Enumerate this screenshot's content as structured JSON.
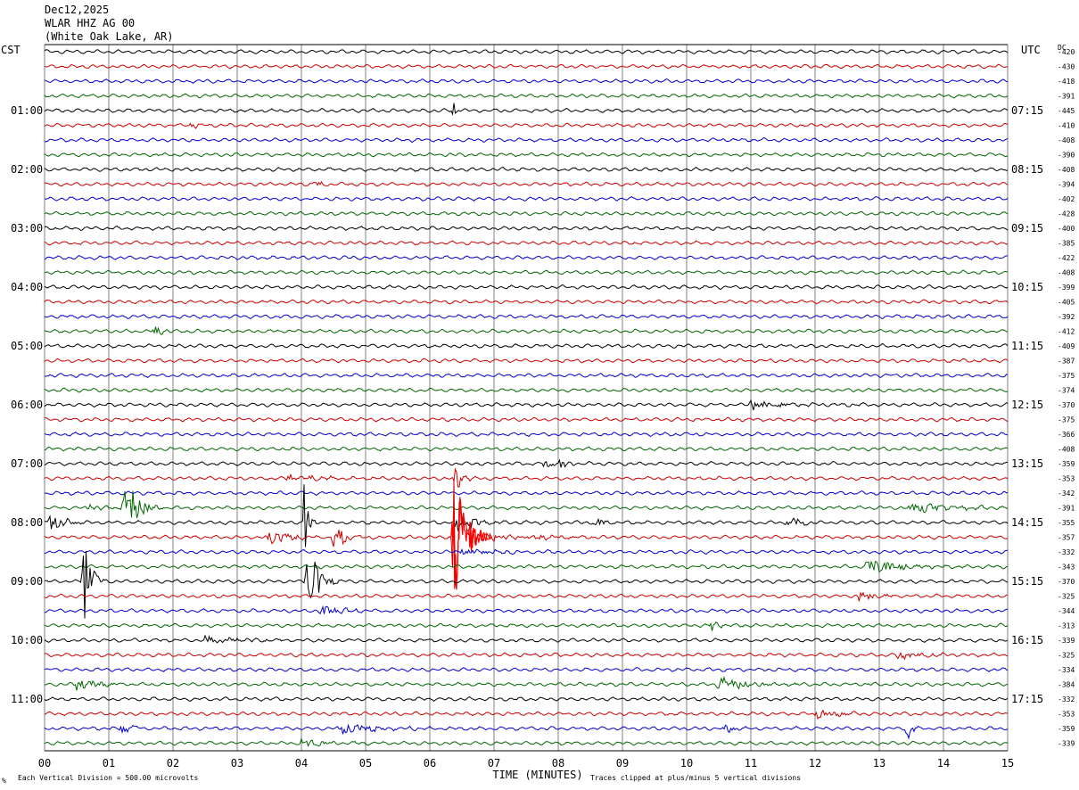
{
  "header": {
    "date": "Dec12,2025",
    "station": "WLAR HHZ AG 00",
    "location": "(White Oak Lake, AR)"
  },
  "labels": {
    "left_tz": "CST",
    "right_tz": "UTC",
    "dc": "DC",
    "xlabel": "TIME (MINUTES)",
    "scale_note": "Each Vertical Division =  500.00 microvolts",
    "clip_note": "Traces clipped at plus/minus 5 vertical divisions",
    "corner_mark": "%"
  },
  "colors": {
    "cycle": [
      "#000000",
      "#cc0000",
      "#0000cc",
      "#006600"
    ],
    "bright_red": "#ff0000",
    "grid": "#808080"
  },
  "chart_data": {
    "type": "line",
    "title": "",
    "x": {
      "label": "TIME (MINUTES)",
      "range": [
        0,
        15
      ],
      "ticks": [
        "00",
        "01",
        "02",
        "03",
        "04",
        "05",
        "06",
        "07",
        "08",
        "09",
        "10",
        "11",
        "12",
        "13",
        "14",
        "15"
      ]
    },
    "rows_per_hour": 4,
    "left_hour_labels": [
      "01:00",
      "02:00",
      "03:00",
      "04:00",
      "05:00",
      "06:00",
      "07:00",
      "08:00",
      "09:00",
      "10:00",
      "11:00"
    ],
    "right_hour_labels": [
      "07:15",
      "08:15",
      "09:15",
      "10:15",
      "11:15",
      "12:15",
      "13:15",
      "14:15",
      "15:15",
      "16:15",
      "17:15"
    ],
    "dc_offsets": [
      "-420",
      "-430",
      "-418",
      "-391",
      "-445",
      "-410",
      "-408",
      "-390",
      "-408",
      "-394",
      "-402",
      "-428",
      "-400",
      "-385",
      "-422",
      "-408",
      "-399",
      "-405",
      "-392",
      "-412",
      "-409",
      "-387",
      "-375",
      "-374",
      "-370",
      "-375",
      "-366",
      "-408",
      "-359",
      "-353",
      "-342",
      "-391",
      "-355",
      "-357",
      "-332",
      "-343",
      "-370",
      "-325",
      "-344",
      "-313",
      "-339",
      "-325",
      "-334",
      "-384",
      "-332",
      "-353",
      "-359",
      "-339"
    ],
    "noise_amplitude_divisions": 0.12,
    "events": [
      {
        "row": 4,
        "minute": 6.38,
        "duration": 0.12,
        "amplitude": 0.55
      },
      {
        "row": 5,
        "minute": 2.3,
        "duration": 0.15,
        "amplitude": 0.3
      },
      {
        "row": 9,
        "minute": 4.2,
        "duration": 0.2,
        "amplitude": 0.3
      },
      {
        "row": 19,
        "minute": 1.7,
        "duration": 0.3,
        "amplitude": 0.35
      },
      {
        "row": 24,
        "minute": 11.0,
        "duration": 1.2,
        "amplitude": 0.35
      },
      {
        "row": 28,
        "minute": 7.8,
        "duration": 0.15,
        "amplitude": 0.6
      },
      {
        "row": 28,
        "minute": 8.05,
        "duration": 0.15,
        "amplitude": 0.5
      },
      {
        "row": 29,
        "minute": 3.8,
        "duration": 1.0,
        "amplitude": 0.25
      },
      {
        "row": 29,
        "minute": 6.4,
        "duration": 0.2,
        "amplitude": 1.2
      },
      {
        "row": 31,
        "minute": 0.7,
        "duration": 0.3,
        "amplitude": 0.35
      },
      {
        "row": 31,
        "minute": 1.25,
        "duration": 0.4,
        "amplitude": 2.4,
        "clipped": true
      },
      {
        "row": 31,
        "minute": 13.5,
        "duration": 1.5,
        "amplitude": 0.3
      },
      {
        "row": 32,
        "minute": 0.1,
        "duration": 0.4,
        "amplitude": 0.7
      },
      {
        "row": 32,
        "minute": 4.05,
        "duration": 0.12,
        "amplitude": 3.2,
        "clipped": true
      },
      {
        "row": 32,
        "minute": 6.4,
        "duration": 0.6,
        "amplitude": 0.6
      },
      {
        "row": 32,
        "minute": 8.6,
        "duration": 0.2,
        "amplitude": 0.4
      },
      {
        "row": 32,
        "minute": 11.6,
        "duration": 0.4,
        "amplitude": 0.4
      },
      {
        "row": 33,
        "minute": 3.5,
        "duration": 0.8,
        "amplitude": 0.4
      },
      {
        "row": 33,
        "minute": 4.5,
        "duration": 0.35,
        "amplitude": 1.0
      },
      {
        "row": 33,
        "minute": 6.38,
        "duration": 0.4,
        "amplitude": 4.5,
        "clipped": true,
        "color": "bright_red"
      },
      {
        "row": 33,
        "minute": 7.0,
        "duration": 1.5,
        "amplitude": 0.3
      },
      {
        "row": 34,
        "minute": 6.5,
        "duration": 1.0,
        "amplitude": 0.3
      },
      {
        "row": 35,
        "minute": 12.8,
        "duration": 1.0,
        "amplitude": 0.5
      },
      {
        "row": 36,
        "minute": 0.62,
        "duration": 0.22,
        "amplitude": 3.5,
        "clipped": true
      },
      {
        "row": 36,
        "minute": 4.1,
        "duration": 0.3,
        "amplitude": 3.2,
        "clipped": true
      },
      {
        "row": 37,
        "minute": 12.7,
        "duration": 0.6,
        "amplitude": 0.4
      },
      {
        "row": 38,
        "minute": 4.3,
        "duration": 0.6,
        "amplitude": 0.4
      },
      {
        "row": 39,
        "minute": 10.4,
        "duration": 0.15,
        "amplitude": 0.6
      },
      {
        "row": 40,
        "minute": 2.5,
        "duration": 1.3,
        "amplitude": 0.3
      },
      {
        "row": 41,
        "minute": 13.3,
        "duration": 0.8,
        "amplitude": 0.3
      },
      {
        "row": 43,
        "minute": 0.5,
        "duration": 0.6,
        "amplitude": 0.45
      },
      {
        "row": 43,
        "minute": 10.5,
        "duration": 0.9,
        "amplitude": 0.45
      },
      {
        "row": 45,
        "minute": 12.0,
        "duration": 1.0,
        "amplitude": 0.25
      },
      {
        "row": 46,
        "minute": 1.2,
        "duration": 0.4,
        "amplitude": 0.35
      },
      {
        "row": 46,
        "minute": 4.6,
        "duration": 1.5,
        "amplitude": 0.3
      },
      {
        "row": 46,
        "minute": 10.6,
        "duration": 0.4,
        "amplitude": 0.3
      },
      {
        "row": 46,
        "minute": 13.45,
        "duration": 0.1,
        "amplitude": 1.1
      },
      {
        "row": 47,
        "minute": 4.0,
        "duration": 0.6,
        "amplitude": 0.35
      }
    ]
  }
}
